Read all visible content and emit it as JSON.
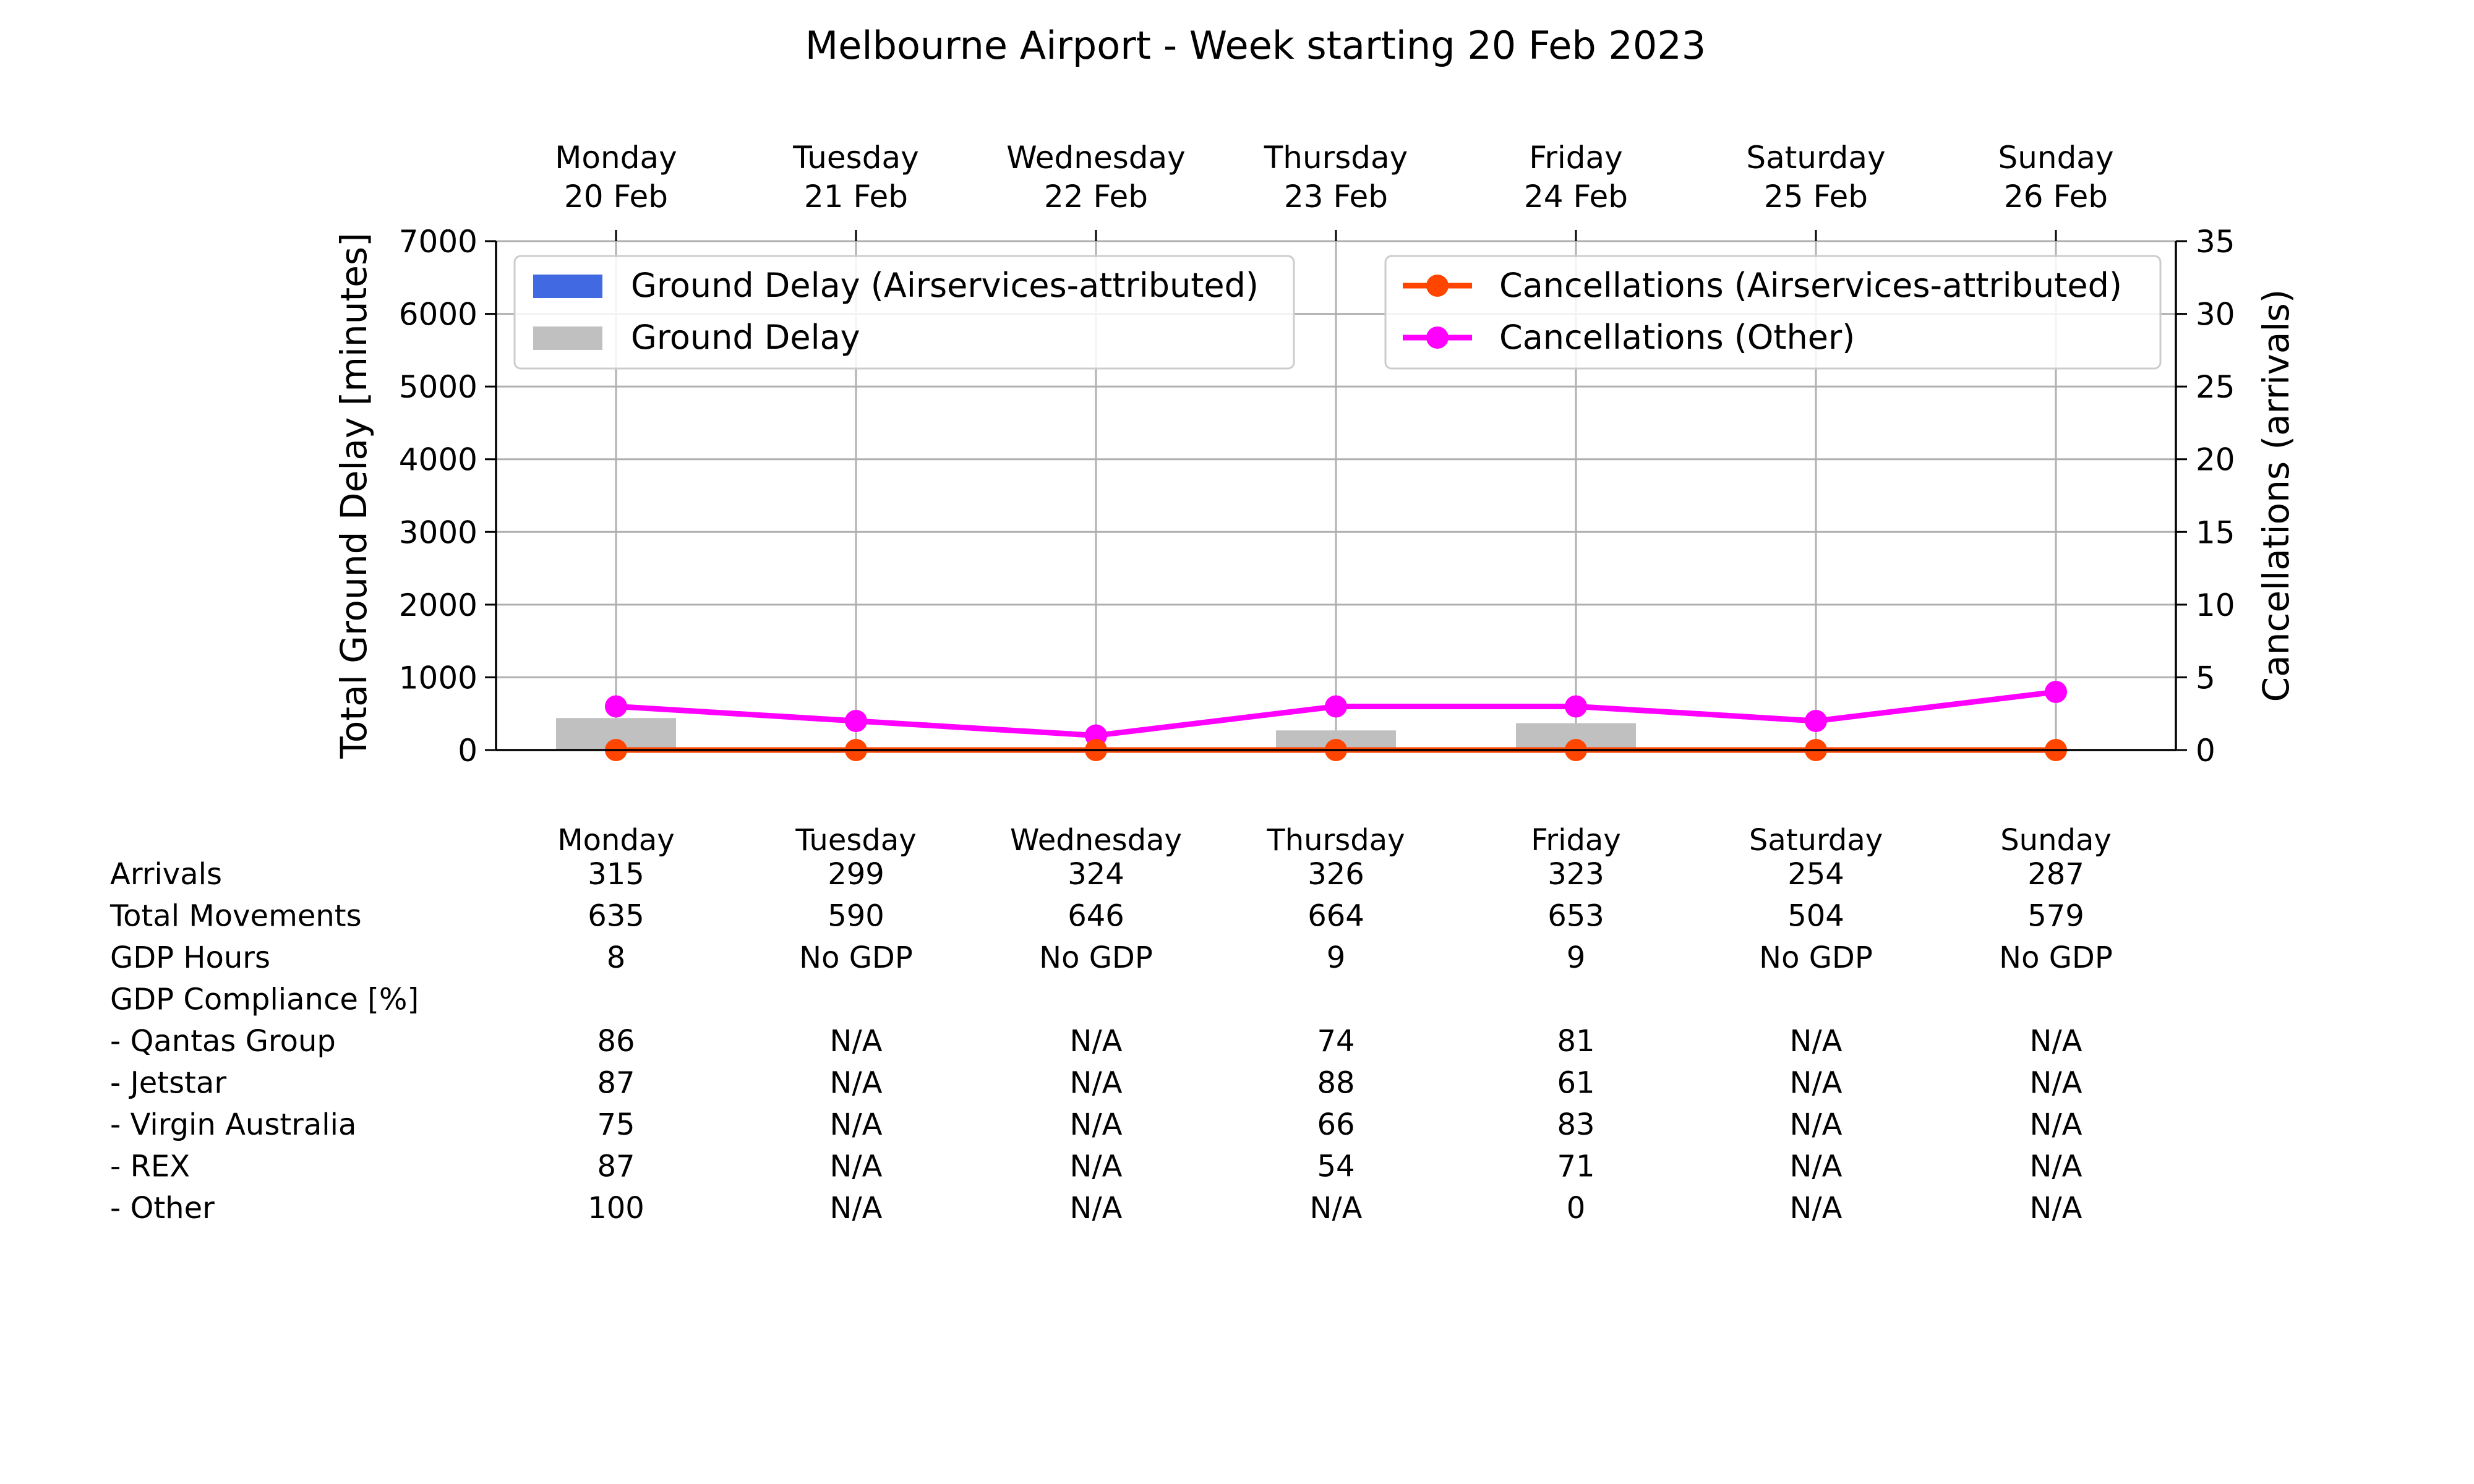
{
  "chart_data": {
    "type": "bar",
    "title": "Melbourne Airport - Week starting 20 Feb 2023",
    "categories": [
      {
        "day": "Monday",
        "date": "20 Feb"
      },
      {
        "day": "Tuesday",
        "date": "21 Feb"
      },
      {
        "day": "Wednesday",
        "date": "22 Feb"
      },
      {
        "day": "Thursday",
        "date": "23 Feb"
      },
      {
        "day": "Friday",
        "date": "24 Feb"
      },
      {
        "day": "Saturday",
        "date": "25 Feb"
      },
      {
        "day": "Sunday",
        "date": "26 Feb"
      }
    ],
    "ylabel": "Total Ground Delay [minutes]",
    "ylim": [
      0,
      7000
    ],
    "yticks": [
      "0",
      "1000",
      "2000",
      "3000",
      "4000",
      "5000",
      "6000",
      "7000"
    ],
    "y2label": "Cancellations (arrivals)",
    "y2lim": [
      0,
      35
    ],
    "y2ticks": [
      "0",
      "5",
      "10",
      "15",
      "20",
      "25",
      "30",
      "35"
    ],
    "grid": true,
    "bar_series": [
      {
        "name": "Ground Delay (Airservices-attributed)",
        "color": "#4169e1",
        "values": [
          0,
          0,
          0,
          0,
          0,
          0,
          0
        ]
      },
      {
        "name": "Ground Delay",
        "color": "#c0c0c0",
        "values": [
          440,
          0,
          0,
          270,
          370,
          0,
          0
        ]
      }
    ],
    "line_series": [
      {
        "name": "Cancellations (Airservices-attributed)",
        "color": "#ff4500",
        "values": [
          0,
          0,
          0,
          0,
          0,
          0,
          0
        ]
      },
      {
        "name": "Cancellations (Other)",
        "color": "#ff00ff",
        "values": [
          3,
          2,
          1,
          3,
          3,
          2,
          4
        ]
      }
    ],
    "legend_left_placement": "top-left",
    "legend_right_placement": "top-right"
  },
  "table": {
    "header": [
      "Monday",
      "Tuesday",
      "Wednesday",
      "Thursday",
      "Friday",
      "Saturday",
      "Sunday"
    ],
    "rows": [
      {
        "label": "Arrivals",
        "values": [
          "315",
          "299",
          "324",
          "326",
          "323",
          "254",
          "287"
        ]
      },
      {
        "label": "Total Movements",
        "values": [
          "635",
          "590",
          "646",
          "664",
          "653",
          "504",
          "579"
        ]
      },
      {
        "label": "GDP Hours",
        "values": [
          "8",
          "No GDP",
          "No GDP",
          "9",
          "9",
          "No GDP",
          "No GDP"
        ]
      },
      {
        "label": "GDP Compliance [%]",
        "values": [
          "",
          "",
          "",
          "",
          "",
          "",
          ""
        ]
      },
      {
        "label": "  - Qantas Group",
        "values": [
          "86",
          "N/A",
          "N/A",
          "74",
          "81",
          "N/A",
          "N/A"
        ]
      },
      {
        "label": "  - Jetstar",
        "values": [
          "87",
          "N/A",
          "N/A",
          "88",
          "61",
          "N/A",
          "N/A"
        ]
      },
      {
        "label": "  - Virgin Australia",
        "values": [
          "75",
          "N/A",
          "N/A",
          "66",
          "83",
          "N/A",
          "N/A"
        ]
      },
      {
        "label": "  - REX",
        "values": [
          "87",
          "N/A",
          "N/A",
          "54",
          "71",
          "N/A",
          "N/A"
        ]
      },
      {
        "label": "  - Other",
        "values": [
          "100",
          "N/A",
          "N/A",
          "N/A",
          "0",
          "N/A",
          "N/A"
        ]
      }
    ]
  }
}
